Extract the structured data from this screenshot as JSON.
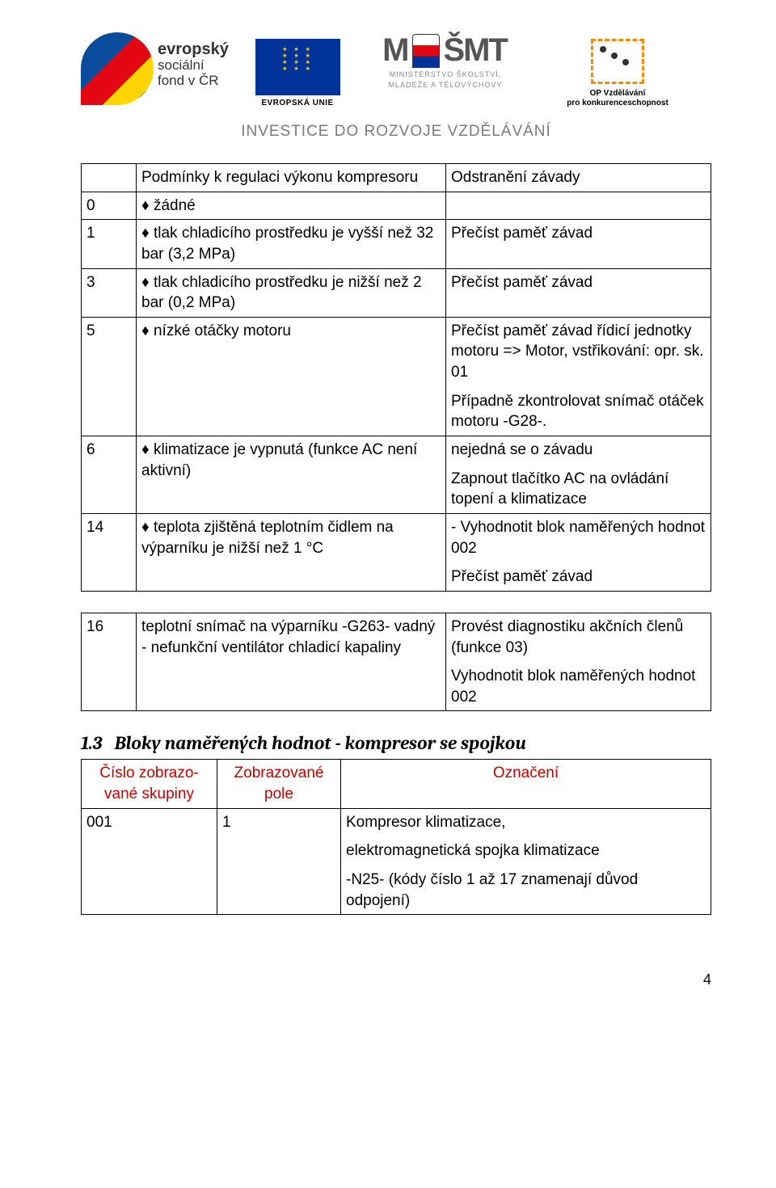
{
  "header": {
    "esf_line1": "evropský",
    "esf_line2": "sociální",
    "esf_line3": "fond v ČR",
    "eu_label": "EVROPSKÁ UNIE",
    "msmt_letters": "MŠMT",
    "msmt_line1": "MINISTERSTVO ŠKOLSTVÍ,",
    "msmt_line2": "MLÁDEŽE A TĚLOVÝCHOVY",
    "op_line1": "OP Vzdělávání",
    "op_line2": "pro konkurenceschopnost",
    "tagline": "INVESTICE DO ROZVOJE VZDĚLÁVÁNÍ"
  },
  "table1": {
    "rows": [
      {
        "c0": "",
        "c1": "Podmínky k regulaci výkonu kompresoru",
        "c2": "Odstranění závady"
      },
      {
        "c0": "0",
        "c1": "♦ žádné",
        "c2": ""
      },
      {
        "c0": "1",
        "c1": "♦ tlak chladicího prostředku je vyšší než 32 bar (3,2 MPa)",
        "c2": "Přečíst paměť závad"
      },
      {
        "c0": "3",
        "c1": "♦ tlak chladicího prostředku je nižší než 2 bar (0,2 MPa)",
        "c2": "Přečíst paměť závad"
      },
      {
        "c0": "5",
        "c1": "♦ nízké otáčky motoru",
        "c2p1": "Přečíst paměť závad řídicí jednotky motoru => Motor, vstřikování: opr. sk. 01",
        "c2p2": "Případně zkontrolovat snímač otáček motoru -G28-."
      },
      {
        "c0": "6",
        "c1": "♦ klimatizace je vypnutá (funkce AC není aktivní)",
        "c2p1": "nejedná se o závadu",
        "c2p2": "Zapnout tlačítko AC na ovládání topení a klimatizace"
      },
      {
        "c0": "14",
        "c1": "♦ teplota zjištěná teplotním čidlem na výparníku je nižší než 1 °C",
        "c2p1": "- Vyhodnotit blok naměřených hodnot 002",
        "c2p2": "Přečíst paměť závad"
      }
    ]
  },
  "table2": {
    "rows": [
      {
        "c0": "16",
        "c1": "teplotní snímač na výparníku -G263- vadný - nefunkční ventilátor chladicí kapaliny",
        "c2p1": "Provést diagnostiku akčních členů (funkce 03)",
        "c2p2": "Vyhodnotit blok naměřených hodnot 002"
      }
    ]
  },
  "section": {
    "num": "1.3",
    "title": "Bloky naměřených hodnot - kompresor se spojkou"
  },
  "table3": {
    "head": {
      "c0a": "Číslo zobrazo-",
      "c0b": "vané skupiny",
      "c1a": "Zobrazované",
      "c1b": "pole",
      "c2": "Označení"
    },
    "row": {
      "c0": "001",
      "c1": "1",
      "c2p1": "Kompresor klimatizace,",
      "c2p2": "elektromagnetická spojka klimatizace",
      "c2p3": "-N25- (kódy číslo 1 až 17 znamenají důvod odpojení)"
    }
  },
  "page_number": "4",
  "colors": {
    "text": "#000000",
    "background": "#ffffff",
    "red": "#c00000",
    "tagline": "#7a7a7a"
  }
}
